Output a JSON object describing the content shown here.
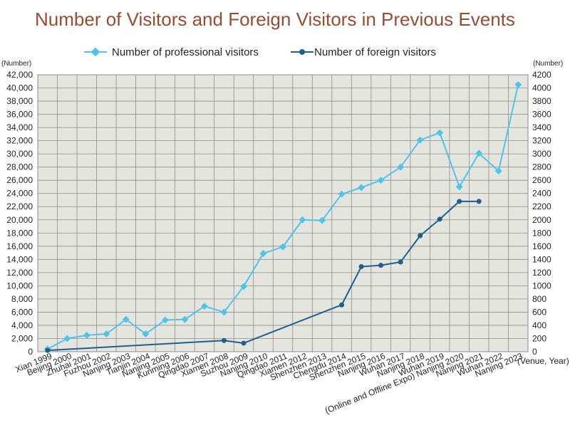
{
  "chart_data": {
    "type": "line",
    "title": "Number of Visitors and Foreign Visitors in Previous Events",
    "ylabel_left": "(Number)",
    "ylabel_right": "(Number)",
    "xlabel": "(Venue, Year)",
    "ylim_left": [
      0,
      42000
    ],
    "ylim_right": [
      0,
      4200
    ],
    "yticks_left": [
      "0",
      "2,000",
      "4,000",
      "6,000",
      "8,000",
      "10,000",
      "12,000",
      "14,000",
      "16,000",
      "18,000",
      "20,000",
      "22,000",
      "24,000",
      "26,000",
      "28,000",
      "30,000",
      "32,000",
      "34,000",
      "36,000",
      "38,000",
      "40,000",
      "42,000"
    ],
    "yticks_right": [
      "0",
      "200",
      "400",
      "600",
      "800",
      "1000",
      "1200",
      "1400",
      "1600",
      "1800",
      "2000",
      "2200",
      "2400",
      "2600",
      "2800",
      "3000",
      "3200",
      "3400",
      "3600",
      "3800",
      "4000",
      "4200"
    ],
    "grid": true,
    "legend_position": "top",
    "categories": [
      "Xian 1999",
      "Beijing 2000",
      "Zhuhai 2001",
      "Fuzhou 2002",
      "Nanjing 2003",
      "Tianjin 2004",
      "Nanjing 2005",
      "Kunming 2006",
      "Qingdao 2007",
      "Xiamen 2008",
      "Suzhou 2009",
      "Nanjing 2010",
      "Qingdao 2011",
      "Xiamen 2012",
      "Shenzhen 2013",
      "Chengdu 2014",
      "Shenzhen 2015",
      "Nanjing 2016",
      "Wuhan 2017",
      "Nanjing 2018",
      "Wuhan 2019",
      "(Online and Offline Expo) Nanjing 2020",
      "Nanjing 2021",
      "Wuhan 2022",
      "Nanjing 2023"
    ],
    "series": [
      {
        "name": "Number of professional visitors",
        "axis": "left",
        "color": "#4fc3e8",
        "marker": "diamond",
        "values": [
          400,
          2000,
          2500,
          2700,
          4900,
          2700,
          4800,
          4900,
          6900,
          6000,
          9900,
          14900,
          15900,
          20000,
          19900,
          23900,
          24900,
          26000,
          28000,
          32100,
          33200,
          25000,
          30100,
          27400,
          40500
        ]
      },
      {
        "name": "Number of foreign visitors",
        "axis": "right",
        "color": "#1f5f8b",
        "marker": "circle",
        "values": [
          20,
          null,
          null,
          null,
          null,
          null,
          null,
          null,
          null,
          170,
          130,
          null,
          null,
          null,
          null,
          710,
          1290,
          1310,
          1360,
          1760,
          2010,
          2280,
          2280,
          null,
          null
        ]
      }
    ]
  },
  "colors": {
    "title": "#9a4a2f",
    "plot_background": "#e5e5e0",
    "grid": "#8c8c8c"
  }
}
